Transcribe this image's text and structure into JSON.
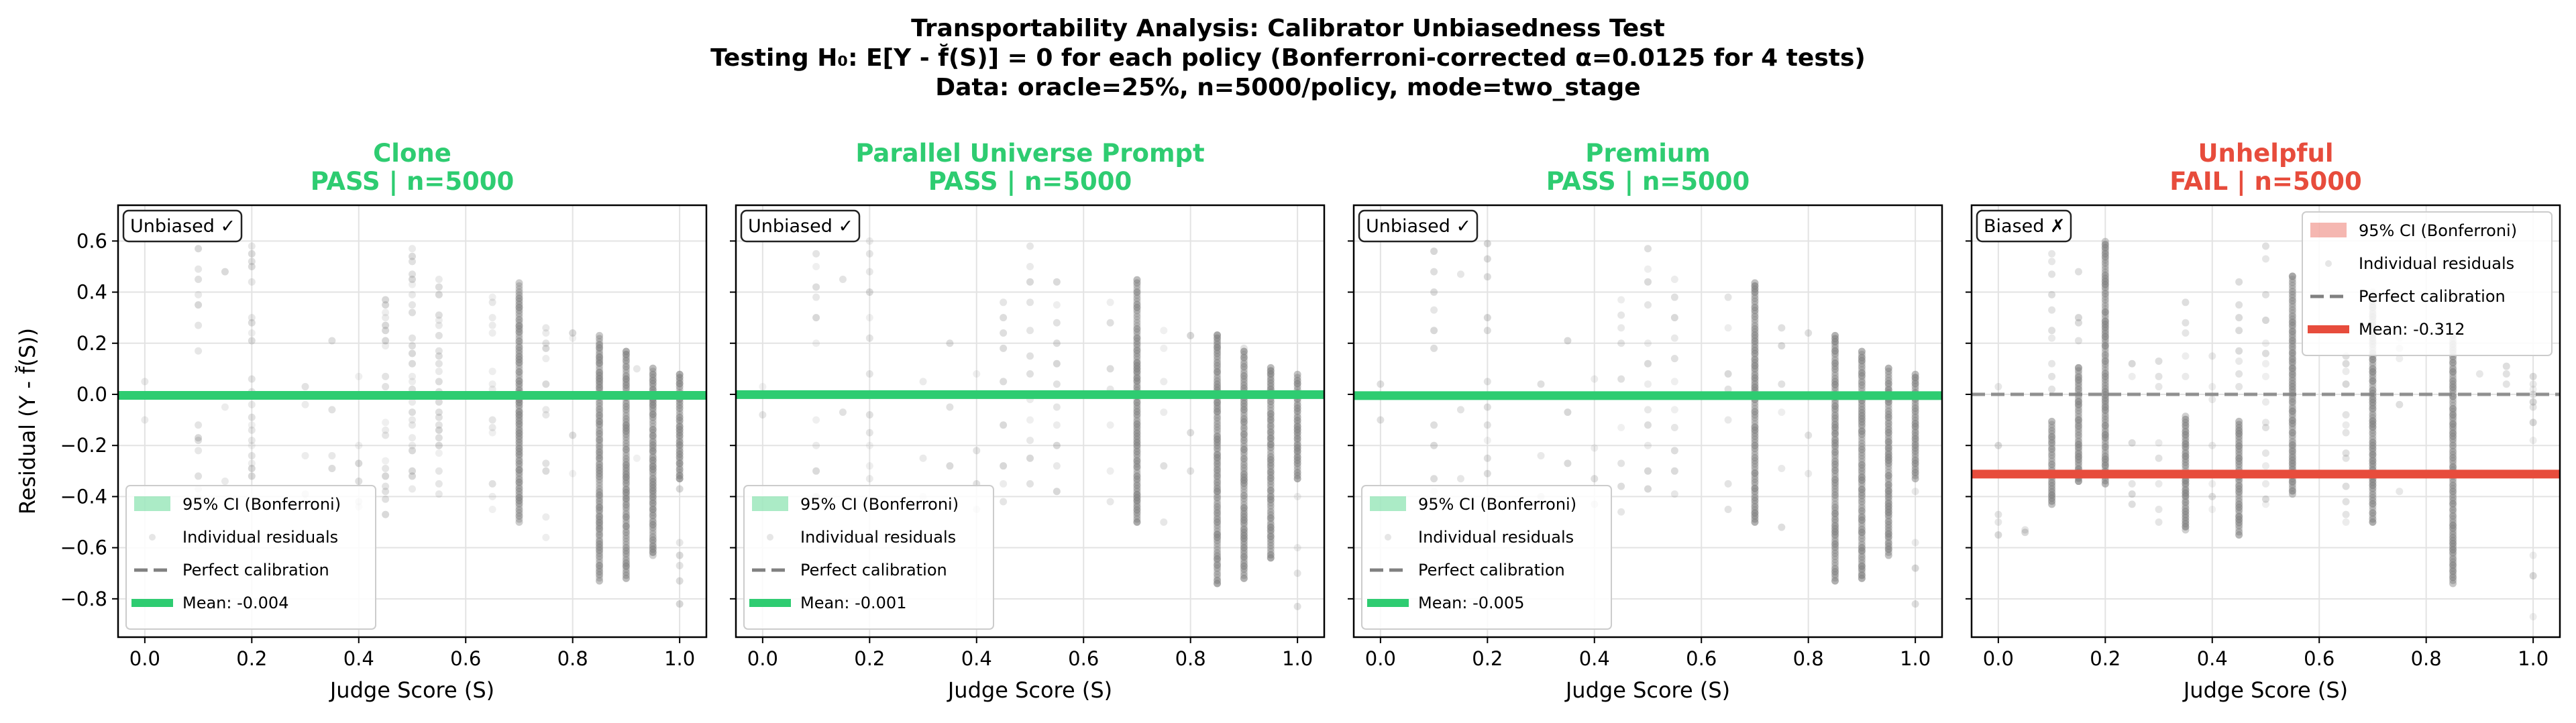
{
  "suptitle": [
    "Transportability Analysis: Calibrator Unbiasedness Test",
    "Testing H₀: E[Y - f̆(S)] = 0 for each policy (Bonferroni-corrected α=0.0125 for 4 tests)",
    "Data: oracle=25%, n=5000/policy, mode=two_stage"
  ],
  "colors": {
    "pass": "#2ecc71",
    "fail": "#e74c3c",
    "points": "#808080",
    "reference": "#808080"
  },
  "chart_data": [
    {
      "type": "scatter",
      "policy": "Clone",
      "title_line2": "PASS | n=5000",
      "status": "pass",
      "badge": "Unbiased ✓",
      "mean": -0.004,
      "xlabel": "Judge Score (S)",
      "ylabel": "Residual (Y - f̆(S))",
      "xlim": [
        -0.05,
        1.05
      ],
      "ylim": [
        -0.95,
        0.74
      ],
      "xticks": [
        "0.0",
        "0.2",
        "0.4",
        "0.6",
        "0.8",
        "1.0"
      ],
      "yticks": [
        "−0.8",
        "−0.6",
        "−0.4",
        "−0.2",
        "0.0",
        "0.2",
        "0.4",
        "0.6"
      ],
      "legend_position": "lower-left",
      "legend": [
        "95% CI (Bonferroni)",
        "Individual residuals",
        "Perfect calibration",
        "Mean: -0.004"
      ],
      "columns": [
        {
          "x": 0.0,
          "values": [
            0.05,
            -0.1
          ]
        },
        {
          "x": 0.1,
          "values": [
            0.57,
            0.49,
            0.45,
            0.39,
            0.35,
            0.27,
            0.17,
            -0.12,
            -0.17,
            -0.18,
            -0.22,
            -0.32,
            -0.37,
            -0.4,
            -0.41,
            -0.42
          ]
        },
        {
          "x": 0.15,
          "values": [
            0.48,
            -0.05,
            -0.34
          ]
        },
        {
          "x": 0.2,
          "values": [
            0.58,
            0.55,
            0.52,
            0.5,
            0.44,
            0.3,
            0.28,
            0.24,
            0.21,
            0.06,
            0.01,
            -0.04,
            -0.09,
            -0.12,
            -0.14,
            -0.18,
            -0.2,
            -0.24,
            -0.27,
            -0.29,
            -0.32
          ]
        },
        {
          "x": 0.3,
          "values": [
            0.03,
            -0.04,
            -0.24,
            -0.39,
            -0.42
          ]
        },
        {
          "x": 0.35,
          "values": [
            0.21,
            -0.06,
            -0.24,
            -0.29
          ]
        },
        {
          "x": 0.4,
          "values": [
            0.07,
            -0.2,
            -0.27,
            -0.34,
            -0.42,
            -0.44
          ]
        },
        {
          "x": 0.45,
          "values": [
            0.37,
            0.35,
            0.32,
            0.3,
            0.27,
            0.25,
            0.21,
            0.19,
            0.07,
            0.03,
            -0.11,
            -0.14,
            -0.16,
            -0.26,
            -0.29,
            -0.32,
            -0.36,
            -0.38,
            -0.41,
            -0.47
          ]
        },
        {
          "x": 0.5,
          "values": [
            0.57,
            0.54,
            0.52,
            0.47,
            0.45,
            0.43,
            0.39,
            0.35,
            0.32,
            0.22,
            0.19,
            0.16,
            0.12,
            0.07,
            0.05,
            0.02,
            -0.03,
            -0.07,
            -0.1,
            -0.12,
            -0.17,
            -0.2,
            -0.22,
            -0.3,
            -0.32,
            -0.37
          ]
        },
        {
          "x": 0.55,
          "values": [
            0.45,
            0.42,
            0.39,
            0.31,
            0.29,
            0.27,
            0.23,
            0.17,
            0.15,
            0.12,
            0.09,
            0.05,
            0.01,
            -0.03,
            -0.07,
            -0.09,
            -0.12,
            -0.14,
            -0.17,
            -0.2,
            -0.23,
            -0.3,
            -0.35,
            -0.39
          ]
        },
        {
          "x": 0.65,
          "values": [
            0.38,
            0.36,
            0.3,
            0.27,
            0.24,
            0.09,
            0.04,
            0.02,
            -0.1,
            -0.13,
            -0.15,
            -0.35,
            -0.4,
            -0.45
          ]
        },
        {
          "x": 0.7,
          "dense": [
            -0.5,
            0.44
          ]
        },
        {
          "x": 0.75,
          "values": [
            0.26,
            0.24,
            0.2,
            0.18,
            0.14,
            0.04,
            -0.06,
            -0.08,
            -0.27,
            -0.3,
            -0.48,
            -0.56
          ]
        },
        {
          "x": 0.8,
          "values": [
            0.24,
            0.22,
            -0.16,
            -0.31
          ]
        },
        {
          "x": 0.85,
          "dense": [
            -0.73,
            0.24
          ]
        },
        {
          "x": 0.9,
          "dense": [
            -0.72,
            0.17
          ]
        },
        {
          "x": 0.92,
          "values": [
            0.1,
            -0.25
          ]
        },
        {
          "x": 0.95,
          "dense": [
            -0.63,
            0.11
          ]
        },
        {
          "x": 1.0,
          "dense": [
            -0.33,
            0.08
          ],
          "values": [
            -0.37,
            -0.58,
            -0.63,
            -0.67,
            -0.73,
            -0.82
          ]
        }
      ]
    },
    {
      "type": "scatter",
      "policy": "Parallel Universe Prompt",
      "title_line2": "PASS | n=5000",
      "status": "pass",
      "badge": "Unbiased ✓",
      "mean": -0.001,
      "xlabel": "Judge Score (S)",
      "xlim": [
        -0.05,
        1.05
      ],
      "ylim": [
        -0.95,
        0.74
      ],
      "xticks": [
        "0.0",
        "0.2",
        "0.4",
        "0.6",
        "0.8",
        "1.0"
      ],
      "legend_position": "lower-left",
      "legend": [
        "95% CI (Bonferroni)",
        "Individual residuals",
        "Perfect calibration",
        "Mean: -0.001"
      ],
      "columns": [
        {
          "x": 0.0,
          "values": [
            0.03,
            -0.08
          ]
        },
        {
          "x": 0.1,
          "values": [
            0.55,
            0.5,
            0.42,
            0.38,
            0.3,
            0.2,
            -0.1,
            -0.2,
            -0.3,
            -0.4,
            -0.43
          ]
        },
        {
          "x": 0.15,
          "values": [
            0.45,
            -0.07
          ]
        },
        {
          "x": 0.2,
          "values": [
            0.6,
            0.55,
            0.48,
            0.4,
            0.3,
            0.22,
            0.08,
            0.0,
            -0.08,
            -0.15,
            -0.2,
            -0.28,
            -0.33
          ]
        },
        {
          "x": 0.3,
          "values": [
            0.05,
            -0.25,
            -0.4
          ]
        },
        {
          "x": 0.35,
          "values": [
            0.2,
            -0.05,
            -0.28
          ]
        },
        {
          "x": 0.4,
          "values": [
            0.08,
            -0.22,
            -0.35,
            -0.45
          ]
        },
        {
          "x": 0.45,
          "values": [
            0.36,
            0.3,
            0.24,
            0.18,
            0.05,
            -0.12,
            -0.28,
            -0.35,
            -0.42
          ]
        },
        {
          "x": 0.5,
          "values": [
            0.58,
            0.5,
            0.44,
            0.36,
            0.25,
            0.15,
            0.08,
            -0.02,
            -0.1,
            -0.18,
            -0.25,
            -0.35
          ]
        },
        {
          "x": 0.55,
          "values": [
            0.44,
            0.35,
            0.28,
            0.2,
            0.12,
            0.04,
            -0.05,
            -0.12,
            -0.2,
            -0.28,
            -0.38
          ]
        },
        {
          "x": 0.65,
          "values": [
            0.36,
            0.28,
            0.1,
            0.02,
            -0.12,
            -0.3,
            -0.42
          ]
        },
        {
          "x": 0.7,
          "dense": [
            -0.5,
            0.45
          ]
        },
        {
          "x": 0.75,
          "values": [
            0.25,
            0.18,
            0.05,
            -0.07,
            -0.28,
            -0.5
          ]
        },
        {
          "x": 0.8,
          "values": [
            0.23,
            -0.15,
            -0.3
          ]
        },
        {
          "x": 0.85,
          "dense": [
            -0.74,
            0.24
          ]
        },
        {
          "x": 0.9,
          "dense": [
            -0.72,
            0.18
          ]
        },
        {
          "x": 0.95,
          "dense": [
            -0.64,
            0.11
          ]
        },
        {
          "x": 1.0,
          "dense": [
            -0.33,
            0.08
          ],
          "values": [
            -0.4,
            -0.6,
            -0.7,
            -0.83
          ]
        }
      ]
    },
    {
      "type": "scatter",
      "policy": "Premium",
      "title_line2": "PASS | n=5000",
      "status": "pass",
      "badge": "Unbiased ✓",
      "mean": -0.005,
      "xlabel": "Judge Score (S)",
      "xlim": [
        -0.05,
        1.05
      ],
      "ylim": [
        -0.95,
        0.74
      ],
      "xticks": [
        "0.0",
        "0.2",
        "0.4",
        "0.6",
        "0.8",
        "1.0"
      ],
      "legend_position": "lower-left",
      "legend": [
        "95% CI (Bonferroni)",
        "Individual residuals",
        "Perfect calibration",
        "Mean: -0.005"
      ],
      "columns": [
        {
          "x": 0.0,
          "values": [
            0.04,
            -0.1
          ]
        },
        {
          "x": 0.1,
          "values": [
            0.56,
            0.48,
            0.4,
            0.33,
            0.25,
            0.18,
            -0.12,
            -0.2,
            -0.33,
            -0.38,
            -0.42
          ]
        },
        {
          "x": 0.15,
          "values": [
            0.47,
            -0.06,
            -0.33
          ]
        },
        {
          "x": 0.2,
          "values": [
            0.59,
            0.53,
            0.46,
            0.3,
            0.25,
            0.05,
            -0.05,
            -0.12,
            -0.18,
            -0.25,
            -0.31
          ]
        },
        {
          "x": 0.3,
          "values": [
            0.04,
            -0.24,
            -0.4
          ]
        },
        {
          "x": 0.35,
          "values": [
            0.21,
            -0.07,
            -0.27
          ]
        },
        {
          "x": 0.4,
          "values": [
            0.06,
            -0.21,
            -0.33,
            -0.43
          ]
        },
        {
          "x": 0.45,
          "values": [
            0.37,
            0.31,
            0.26,
            0.2,
            0.06,
            -0.13,
            -0.27,
            -0.36,
            -0.46
          ]
        },
        {
          "x": 0.5,
          "values": [
            0.57,
            0.49,
            0.44,
            0.35,
            0.2,
            0.12,
            0.04,
            -0.06,
            -0.12,
            -0.2,
            -0.3,
            -0.37
          ]
        },
        {
          "x": 0.55,
          "values": [
            0.45,
            0.38,
            0.3,
            0.22,
            0.14,
            0.05,
            -0.06,
            -0.13,
            -0.22,
            -0.3,
            -0.39
          ]
        },
        {
          "x": 0.65,
          "values": [
            0.38,
            0.26,
            0.08,
            0.02,
            -0.1,
            -0.35,
            -0.45
          ]
        },
        {
          "x": 0.7,
          "dense": [
            -0.5,
            0.44
          ]
        },
        {
          "x": 0.75,
          "values": [
            0.26,
            0.19,
            0.04,
            -0.07,
            -0.29,
            -0.52
          ]
        },
        {
          "x": 0.8,
          "values": [
            0.24,
            -0.16,
            -0.31
          ]
        },
        {
          "x": 0.85,
          "dense": [
            -0.73,
            0.24
          ]
        },
        {
          "x": 0.9,
          "dense": [
            -0.72,
            0.17
          ]
        },
        {
          "x": 0.95,
          "dense": [
            -0.63,
            0.11
          ]
        },
        {
          "x": 1.0,
          "dense": [
            -0.33,
            0.08
          ],
          "values": [
            -0.38,
            -0.58,
            -0.68,
            -0.82
          ]
        }
      ]
    },
    {
      "type": "scatter",
      "policy": "Unhelpful",
      "title_line2": "FAIL | n=5000",
      "status": "fail",
      "badge": "Biased ✗",
      "mean": -0.312,
      "xlabel": "Judge Score (S)",
      "xlim": [
        -0.05,
        1.05
      ],
      "ylim": [
        -0.95,
        0.74
      ],
      "xticks": [
        "0.0",
        "0.2",
        "0.4",
        "0.6",
        "0.8",
        "1.0"
      ],
      "legend_position": "upper-right",
      "legend": [
        "95% CI (Bonferroni)",
        "Individual residuals",
        "Perfect calibration",
        "Mean: -0.312"
      ],
      "columns": [
        {
          "x": 0.0,
          "values": [
            0.03,
            -0.2,
            -0.47,
            -0.5,
            -0.55
          ]
        },
        {
          "x": 0.05,
          "values": [
            -0.53,
            -0.54
          ]
        },
        {
          "x": 0.1,
          "dense": [
            -0.43,
            -0.1
          ],
          "values": [
            0.55,
            0.52,
            0.47,
            0.39,
            0.33,
            0.25,
            0.22,
            0.12,
            0.07,
            0.02
          ]
        },
        {
          "x": 0.15,
          "dense": [
            -0.34,
            0.11
          ],
          "values": [
            0.48,
            0.3,
            0.28,
            0.21
          ]
        },
        {
          "x": 0.2,
          "dense": [
            -0.35,
            0.6
          ]
        },
        {
          "x": 0.25,
          "values": [
            0.12,
            0.07,
            -0.19,
            -0.35,
            -0.39,
            -0.43
          ]
        },
        {
          "x": 0.3,
          "values": [
            0.13,
            0.07,
            0.03,
            -0.19,
            -0.25,
            -0.35,
            -0.45,
            -0.5
          ]
        },
        {
          "x": 0.35,
          "dense": [
            -0.53,
            -0.08
          ],
          "values": [
            0.36,
            0.28,
            0.24,
            0.15,
            0.07
          ]
        },
        {
          "x": 0.4,
          "values": [
            0.15,
            0.03,
            -0.02,
            -0.2,
            -0.35,
            -0.4,
            -0.45
          ]
        },
        {
          "x": 0.45,
          "dense": [
            -0.55,
            -0.1
          ],
          "values": [
            0.44,
            0.35,
            0.3,
            0.25,
            0.17,
            0.13,
            0.08,
            0.03
          ]
        },
        {
          "x": 0.5,
          "values": [
            0.58,
            0.53,
            0.39,
            0.29,
            0.2,
            0.16,
            0.12,
            0.07,
            -0.03,
            -0.11,
            -0.13,
            -0.23,
            -0.28,
            -0.35,
            -0.41,
            -0.43
          ]
        },
        {
          "x": 0.55,
          "dense": [
            -0.39,
            0.47
          ]
        },
        {
          "x": 0.65,
          "values": [
            0.15,
            0.12,
            0.09,
            0.04,
            -0.08,
            -0.12,
            -0.15,
            -0.23,
            -0.25,
            -0.36,
            -0.42,
            -0.47,
            -0.5
          ]
        },
        {
          "x": 0.7,
          "dense": [
            -0.5,
            0.4
          ]
        },
        {
          "x": 0.75,
          "values": [
            0.22,
            0.18,
            0.14,
            -0.04,
            -0.38
          ]
        },
        {
          "x": 0.85,
          "dense": [
            -0.74,
            0.24
          ]
        },
        {
          "x": 0.9,
          "values": [
            0.08
          ]
        },
        {
          "x": 0.95,
          "values": [
            0.11,
            0.08,
            0.04
          ]
        },
        {
          "x": 1.0,
          "values": [
            0.07,
            0.04,
            0.02,
            0.0,
            -0.03,
            -0.05,
            -0.11,
            -0.18,
            -0.63,
            -0.71,
            -0.87
          ]
        }
      ]
    }
  ]
}
